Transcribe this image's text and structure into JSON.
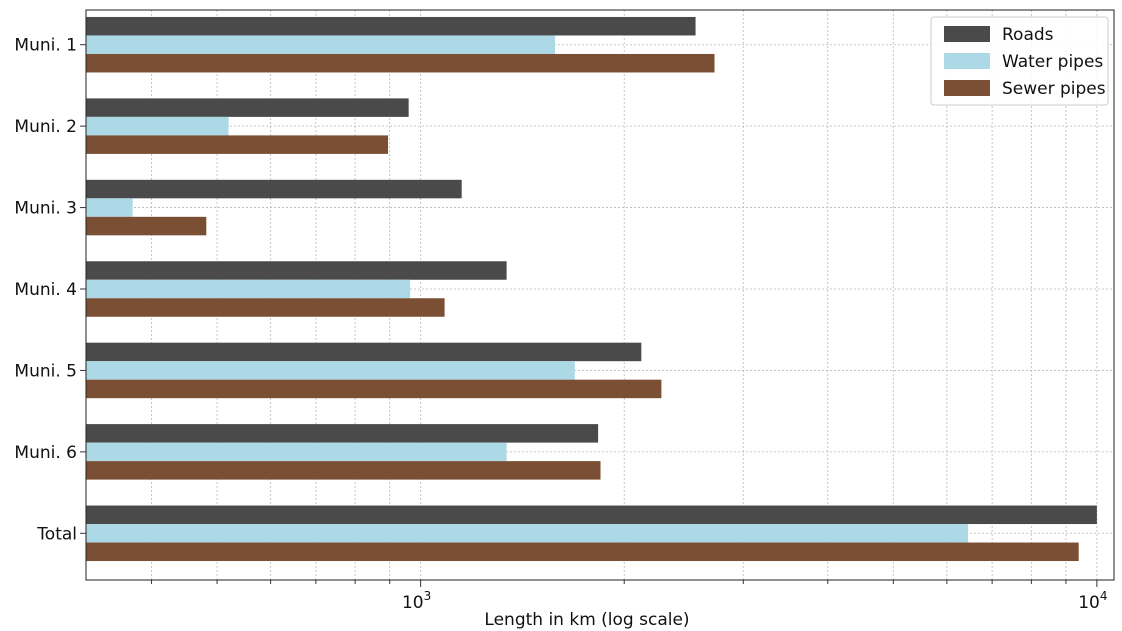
{
  "chart_data": {
    "type": "bar",
    "orientation": "horizontal",
    "categories": [
      "Muni. 1",
      "Muni. 2",
      "Muni. 3",
      "Muni. 4",
      "Muni. 5",
      "Muni. 6",
      "Total"
    ],
    "series": [
      {
        "name": "Roads",
        "color": "#4a4a4a",
        "values": [
          2550,
          960,
          1150,
          1340,
          2120,
          1830,
          10000
        ]
      },
      {
        "name": "Water pipes",
        "color": "#add8e6",
        "values": [
          1580,
          520,
          375,
          965,
          1690,
          1340,
          6450
        ]
      },
      {
        "name": "Sewer pipes",
        "color": "#7b4f33",
        "values": [
          2720,
          895,
          482,
          1085,
          2270,
          1845,
          9400
        ]
      }
    ],
    "xlabel": "Length in km (log scale)",
    "ylabel": "",
    "xscale": "log",
    "xlim": [
      320,
      10600
    ],
    "xticks": [
      {
        "value": 1000,
        "label": "10",
        "exp": "3"
      },
      {
        "value": 10000,
        "label": "10",
        "exp": "4"
      }
    ],
    "grid": true,
    "legend_position": "top-right"
  }
}
